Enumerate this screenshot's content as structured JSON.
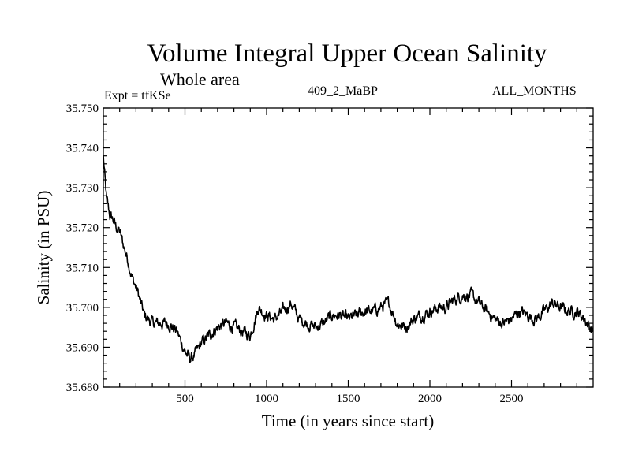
{
  "chart_data": {
    "type": "line",
    "title": "Volume Integral Upper Ocean Salinity",
    "subtitle": "Whole area",
    "annotations": {
      "experiment": "Expt = tfKSe",
      "run_id": "409_2_MaBP",
      "period": "ALL_MONTHS"
    },
    "xlabel": "Time (in years since start)",
    "ylabel": "Salinity (in PSU)",
    "xlim": [
      0,
      3000
    ],
    "ylim": [
      35.68,
      35.75
    ],
    "x_ticks": [
      500,
      1000,
      1500,
      2000,
      2500
    ],
    "x_tick_labels": [
      "500",
      "1000",
      "1500",
      "2000",
      "2500"
    ],
    "y_ticks": [
      35.68,
      35.69,
      35.7,
      35.71,
      35.72,
      35.73,
      35.74,
      35.75
    ],
    "y_tick_labels": [
      "35.680",
      "35.690",
      "35.700",
      "35.710",
      "35.720",
      "35.730",
      "35.740",
      "35.750"
    ],
    "grid": false,
    "series": [
      {
        "name": "Upper ocean salinity",
        "x": [
          0,
          10,
          20,
          40,
          60,
          80,
          100,
          120,
          150,
          180,
          210,
          250,
          300,
          350,
          400,
          450,
          500,
          530,
          560,
          600,
          650,
          700,
          750,
          800,
          850,
          900,
          950,
          1000,
          1050,
          1100,
          1150,
          1200,
          1250,
          1300,
          1350,
          1400,
          1450,
          1500,
          1550,
          1600,
          1650,
          1700,
          1750,
          1800,
          1850,
          1900,
          1950,
          2000,
          2050,
          2100,
          2150,
          2200,
          2250,
          2300,
          2350,
          2400,
          2450,
          2500,
          2550,
          2600,
          2650,
          2700,
          2750,
          2800,
          2850,
          2900,
          2950,
          2980,
          3000
        ],
        "values": [
          35.738,
          35.732,
          35.727,
          35.723,
          35.722,
          35.72,
          35.719,
          35.716,
          35.712,
          35.707,
          35.704,
          35.698,
          35.696,
          35.696,
          35.696,
          35.694,
          35.689,
          35.687,
          35.688,
          35.691,
          35.693,
          35.695,
          35.696,
          35.695,
          35.694,
          35.693,
          35.7,
          35.698,
          35.697,
          35.699,
          35.701,
          35.697,
          35.696,
          35.695,
          35.696,
          35.698,
          35.698,
          35.697,
          35.698,
          35.699,
          35.699,
          35.7,
          35.701,
          35.696,
          35.695,
          35.697,
          35.698,
          35.699,
          35.7,
          35.7,
          35.702,
          35.703,
          35.703,
          35.701,
          35.699,
          35.697,
          35.696,
          35.697,
          35.699,
          35.698,
          35.697,
          35.699,
          35.701,
          35.7,
          35.699,
          35.699,
          35.697,
          35.695,
          35.694
        ]
      }
    ]
  }
}
